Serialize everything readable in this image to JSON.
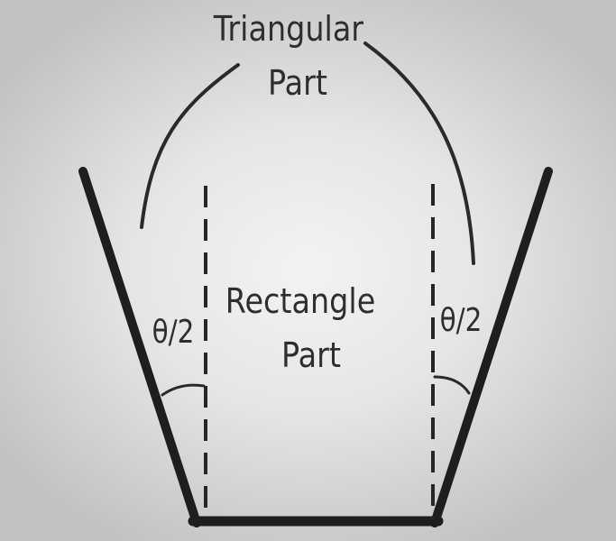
{
  "labels": {
    "triangular_line1": "Triangular",
    "triangular_line2": "Part",
    "rectangle_line1": "Rectangle",
    "rectangle_line2": "Part",
    "angle_left": "θ/2",
    "angle_right": "θ/2"
  },
  "colors": {
    "stroke": "#1e1e1e",
    "text": "#2e2e2e"
  }
}
